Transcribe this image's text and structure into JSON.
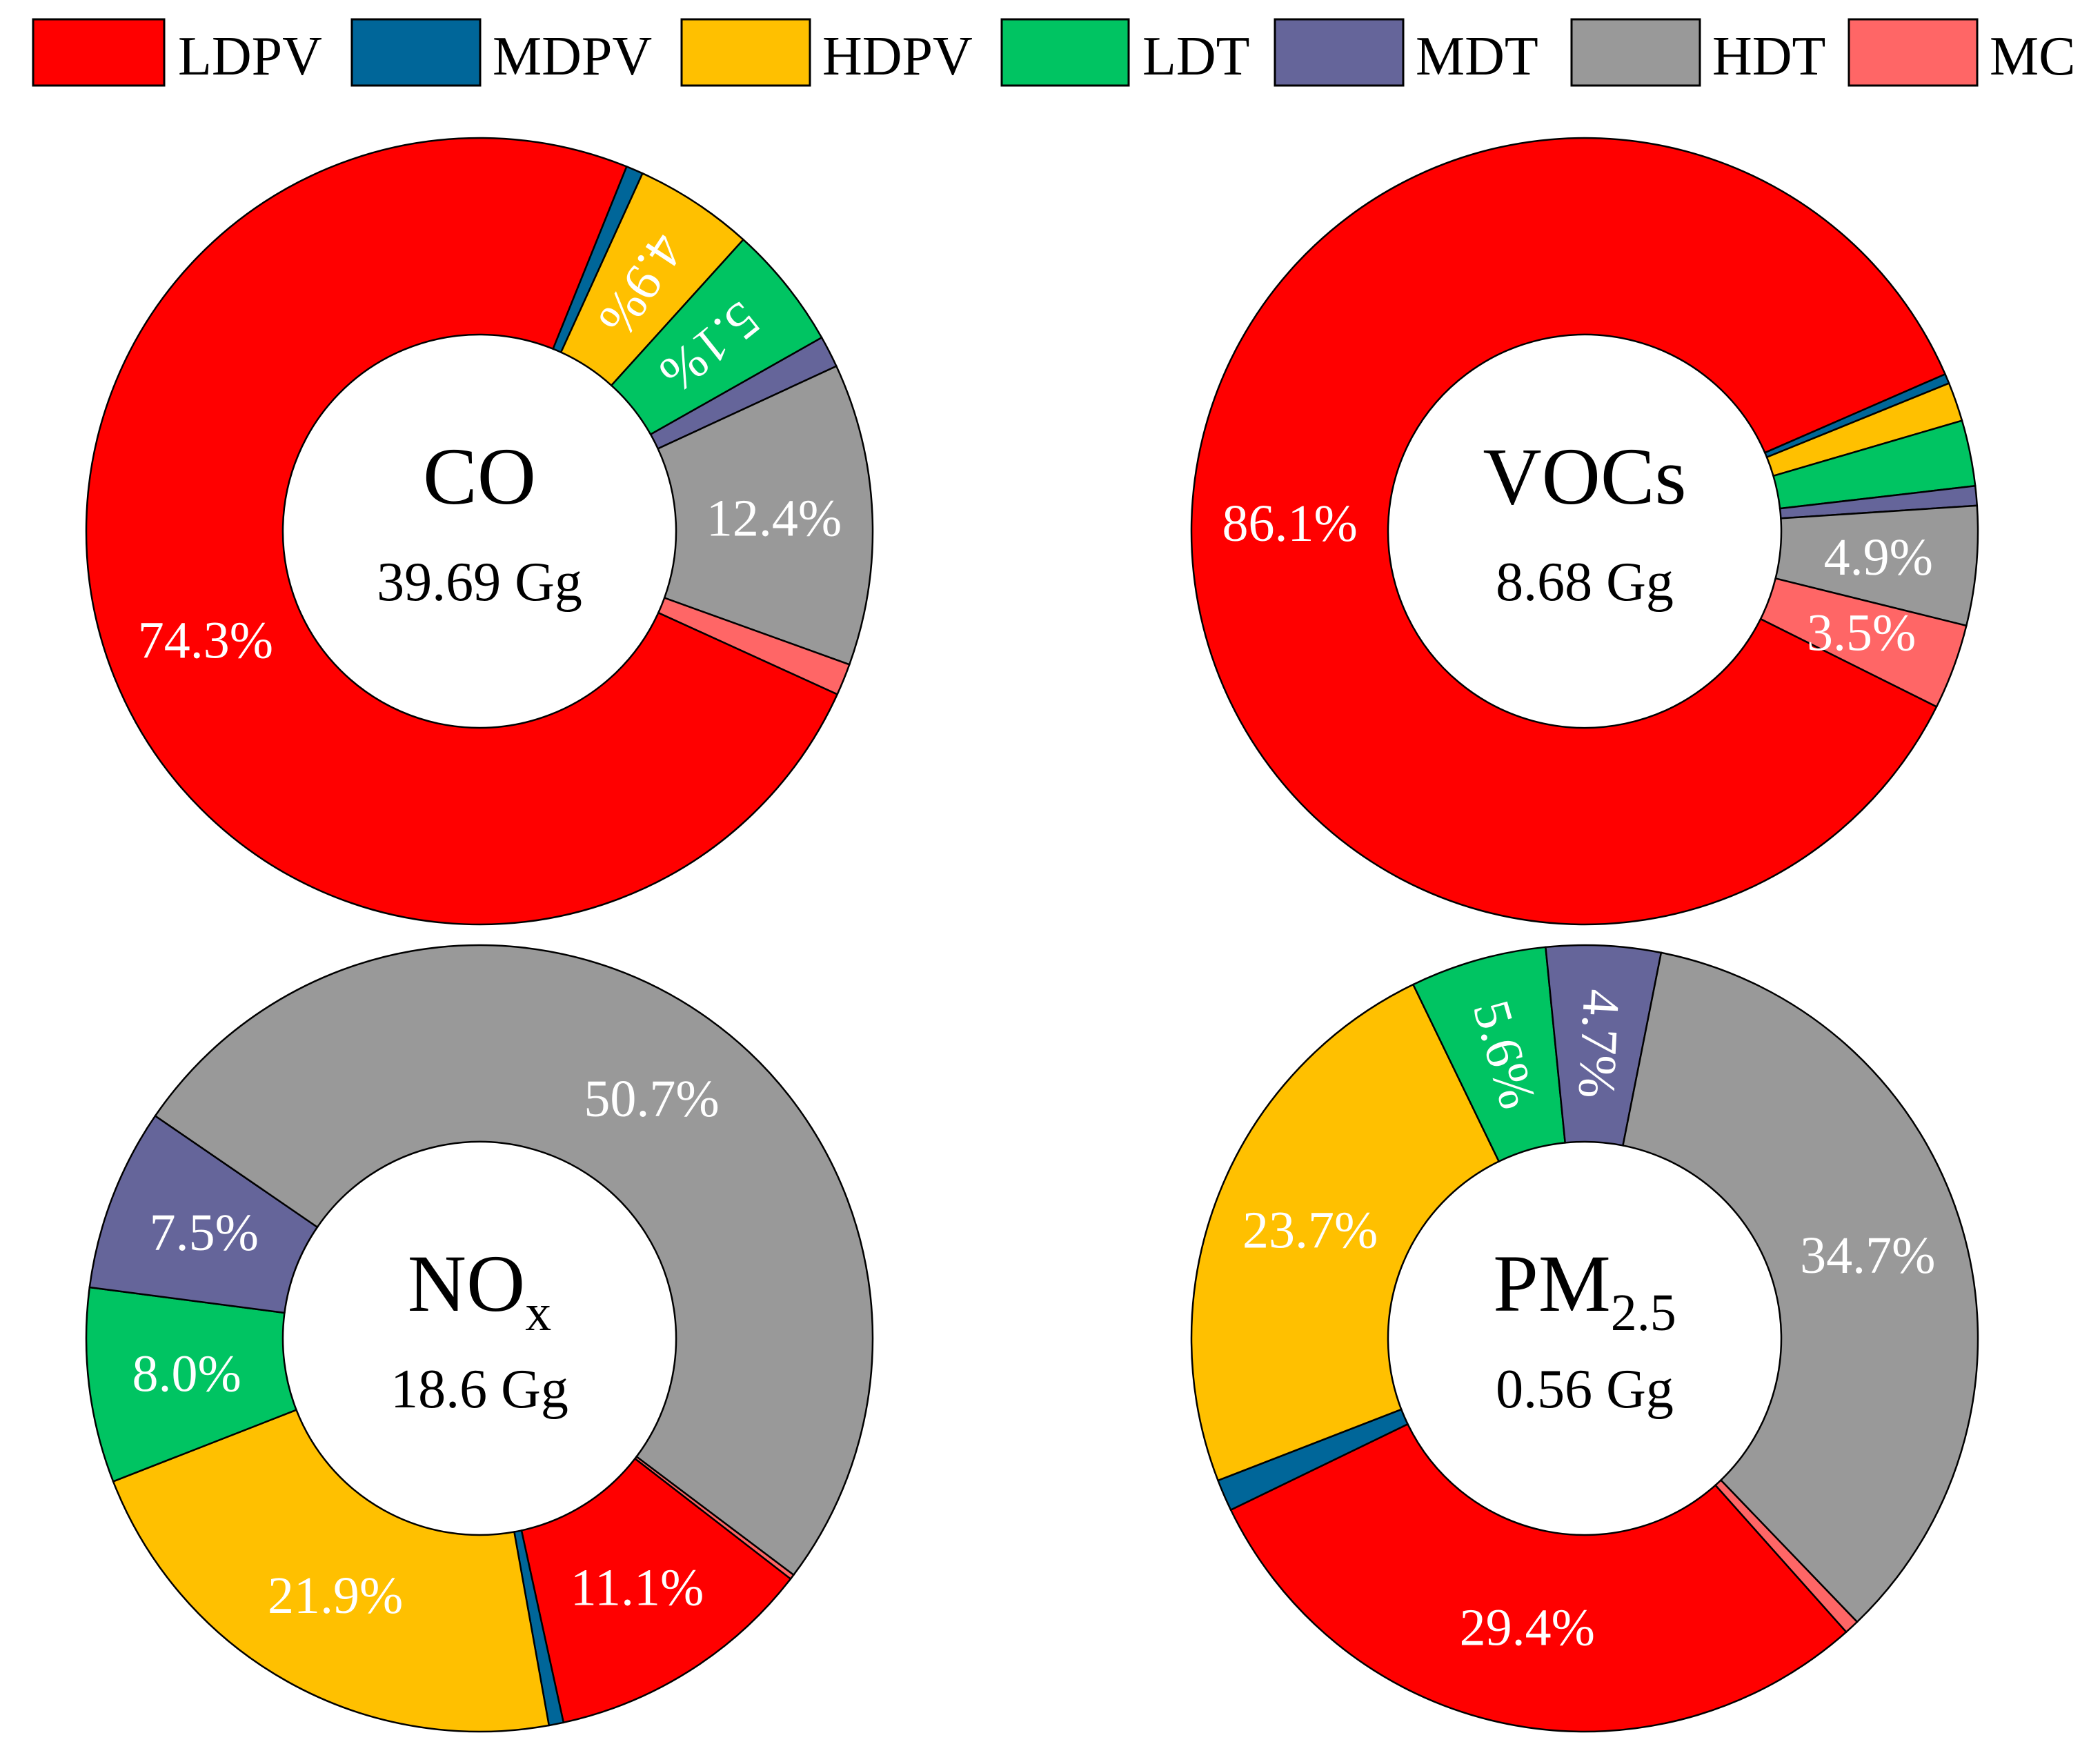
{
  "chart_data": [
    {
      "type": "pie",
      "style": "donut",
      "title": "CO",
      "title_subscript": "",
      "total": "39.69 Gg",
      "categories": [
        "LDPV",
        "MDPV",
        "HDPV",
        "LDT",
        "MDT",
        "HDT",
        "MC"
      ],
      "values": [
        74.3,
        0.7,
        4.9,
        5.1,
        1.3,
        12.4,
        1.3
      ],
      "labels": [
        "74.3%",
        "",
        "4.9%",
        "5.1%",
        "",
        "12.4%",
        ""
      ]
    },
    {
      "type": "pie",
      "style": "donut",
      "title": "VOCs",
      "title_subscript": "",
      "total": "8.68 Gg",
      "categories": [
        "LDPV",
        "MDPV",
        "HDPV",
        "LDT",
        "MDT",
        "HDT",
        "MC"
      ],
      "values": [
        86.1,
        0.4,
        1.6,
        2.7,
        0.8,
        4.9,
        3.5
      ],
      "labels": [
        "86.1%",
        "",
        "",
        "",
        "",
        "4.9%",
        "3.5%"
      ]
    },
    {
      "type": "pie",
      "style": "donut",
      "title": "NO",
      "title_subscript": "x",
      "total": "18.6 Gg",
      "categories": [
        "LDPV",
        "MDPV",
        "HDPV",
        "LDT",
        "MDT",
        "HDT",
        "MC"
      ],
      "values": [
        11.1,
        0.6,
        21.9,
        8.0,
        7.5,
        50.7,
        0.2
      ],
      "labels": [
        "11.1%",
        "",
        "21.9%",
        "8.0%",
        "7.5%",
        "50.7%",
        ""
      ]
    },
    {
      "type": "pie",
      "style": "donut",
      "title": "PM",
      "title_subscript": "2.5",
      "total": "0.56 Gg",
      "categories": [
        "LDPV",
        "MDPV",
        "HDPV",
        "LDT",
        "MDT",
        "HDT",
        "MC"
      ],
      "values": [
        29.4,
        1.3,
        23.7,
        5.6,
        4.7,
        34.7,
        0.6
      ],
      "labels": [
        "29.4%",
        "",
        "23.7%",
        "5.6%",
        "4.7%",
        "34.7%",
        ""
      ]
    }
  ],
  "legend": {
    "entries": [
      {
        "label": "LDPV",
        "color": "#ff0000"
      },
      {
        "label": "MDPV",
        "color": "#006699"
      },
      {
        "label": "HDPV",
        "color": "#ffc000"
      },
      {
        "label": "LDT",
        "color": "#00c462"
      },
      {
        "label": "MDT",
        "color": "#65659a"
      },
      {
        "label": "HDT",
        "color": "#999999"
      },
      {
        "label": "MC",
        "color": "#ff6666"
      }
    ]
  }
}
